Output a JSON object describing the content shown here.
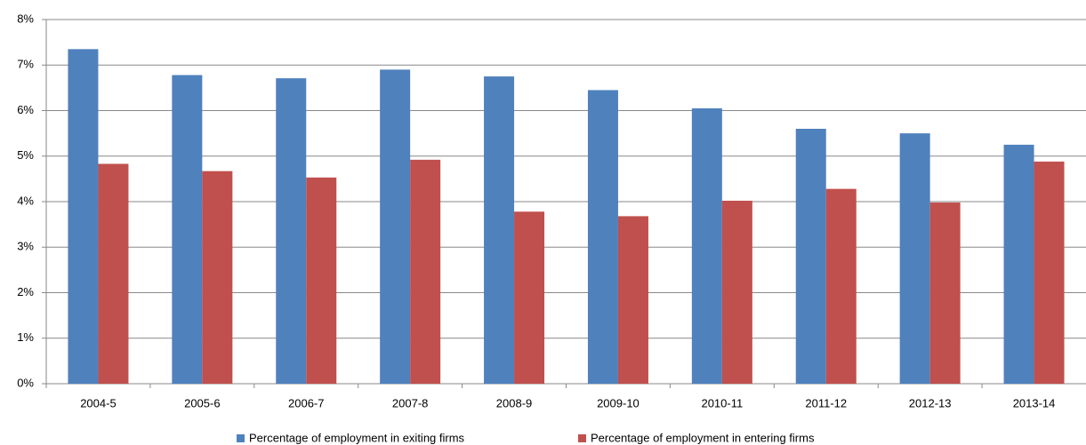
{
  "chart_data": {
    "type": "bar",
    "categories": [
      "2004-5",
      "2005-6",
      "2006-7",
      "2007-8",
      "2008-9",
      "2009-10",
      "2010-11",
      "2011-12",
      "2012-13",
      "2013-14"
    ],
    "series": [
      {
        "name": "Percentage of employment in exiting firms",
        "color": "#4f81bd",
        "values": [
          7.35,
          6.78,
          6.71,
          6.9,
          6.75,
          6.45,
          6.05,
          5.6,
          5.5,
          5.25
        ]
      },
      {
        "name": "Percentage of employment in entering firms",
        "color": "#c0504d",
        "values": [
          4.83,
          4.67,
          4.53,
          4.92,
          3.78,
          3.68,
          4.02,
          4.28,
          3.98,
          4.88
        ]
      }
    ],
    "ylim": [
      0,
      8
    ],
    "yticks": [
      {
        "value": 0,
        "label": "0%"
      },
      {
        "value": 1,
        "label": "1%"
      },
      {
        "value": 2,
        "label": "2%"
      },
      {
        "value": 3,
        "label": "3%"
      },
      {
        "value": 4,
        "label": "4%"
      },
      {
        "value": 5,
        "label": "5%"
      },
      {
        "value": 6,
        "label": "6%"
      },
      {
        "value": 7,
        "label": "7%"
      },
      {
        "value": 8,
        "label": "8%"
      }
    ],
    "grid": true,
    "legend": "bottom"
  }
}
